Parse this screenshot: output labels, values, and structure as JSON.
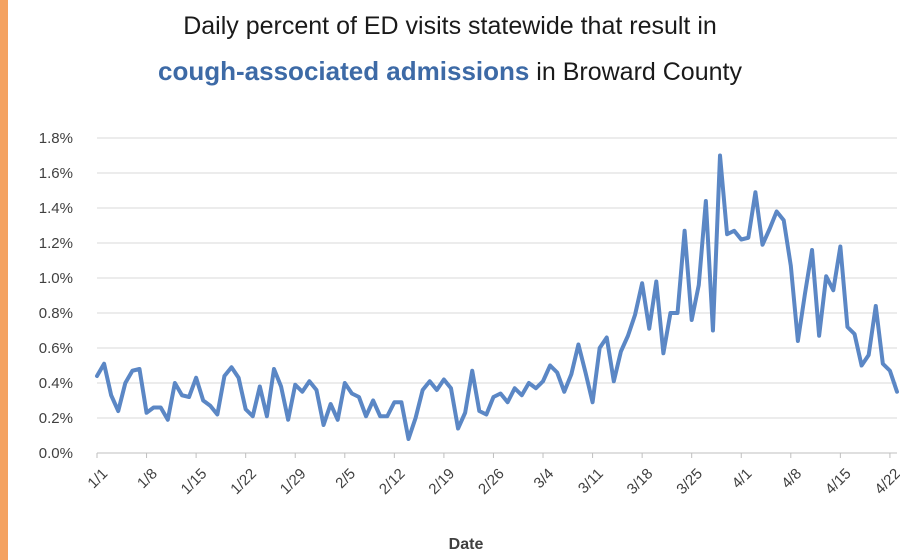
{
  "title": {
    "line1": "Daily percent of ED visits statewide that result in",
    "line2_highlight": "cough-associated admissions",
    "line2_rest": " in Broward County"
  },
  "colors": {
    "line": "#5b87c5",
    "highlight": "#3d6aa6",
    "accent_bar": "#f4a261",
    "grid": "#d9d9d9"
  },
  "chart_data": {
    "type": "line",
    "xlabel": "Date",
    "ylabel": "",
    "ylim": [
      0,
      1.8
    ],
    "y_ticks": [
      "0.0%",
      "0.2%",
      "0.4%",
      "0.6%",
      "0.8%",
      "1.0%",
      "1.2%",
      "1.4%",
      "1.6%",
      "1.8%"
    ],
    "x_range": [
      "1/1",
      "4/23"
    ],
    "x_ticks": [
      "1/1",
      "1/8",
      "1/15",
      "1/22",
      "1/29",
      "2/5",
      "2/12",
      "2/19",
      "2/26",
      "3/4",
      "3/11",
      "3/18",
      "3/25",
      "4/1",
      "4/8",
      "4/15",
      "4/22"
    ],
    "grid": "horizontal",
    "series": [
      {
        "values": [
          0.44,
          0.51,
          0.33,
          0.24,
          0.4,
          0.47,
          0.48,
          0.23,
          0.26,
          0.26,
          0.19,
          0.4,
          0.33,
          0.32,
          0.43,
          0.3,
          0.27,
          0.22,
          0.44,
          0.49,
          0.43,
          0.25,
          0.21,
          0.38,
          0.21,
          0.48,
          0.38,
          0.19,
          0.39,
          0.35,
          0.41,
          0.36,
          0.16,
          0.28,
          0.19,
          0.4,
          0.34,
          0.32,
          0.21,
          0.3,
          0.21,
          0.21,
          0.29,
          0.29,
          0.08,
          0.2,
          0.36,
          0.41,
          0.36,
          0.42,
          0.37,
          0.14,
          0.23,
          0.47,
          0.24,
          0.22,
          0.32,
          0.34,
          0.29,
          0.37,
          0.33,
          0.4,
          0.37,
          0.41,
          0.5,
          0.46,
          0.35,
          0.45,
          0.62,
          0.46,
          0.29,
          0.6,
          0.66,
          0.41,
          0.58,
          0.67,
          0.79,
          0.97,
          0.71,
          0.98,
          0.57,
          0.8,
          0.8,
          1.27,
          0.76,
          0.96,
          1.44,
          0.7,
          1.7,
          1.25,
          1.27,
          1.22,
          1.23,
          1.49,
          1.19,
          1.28,
          1.38,
          1.33,
          1.07,
          0.64,
          0.91,
          1.16,
          0.67,
          1.01,
          0.93,
          1.18,
          0.72,
          0.68,
          0.5,
          0.56,
          0.84,
          0.51,
          0.47,
          0.35
        ]
      }
    ]
  }
}
